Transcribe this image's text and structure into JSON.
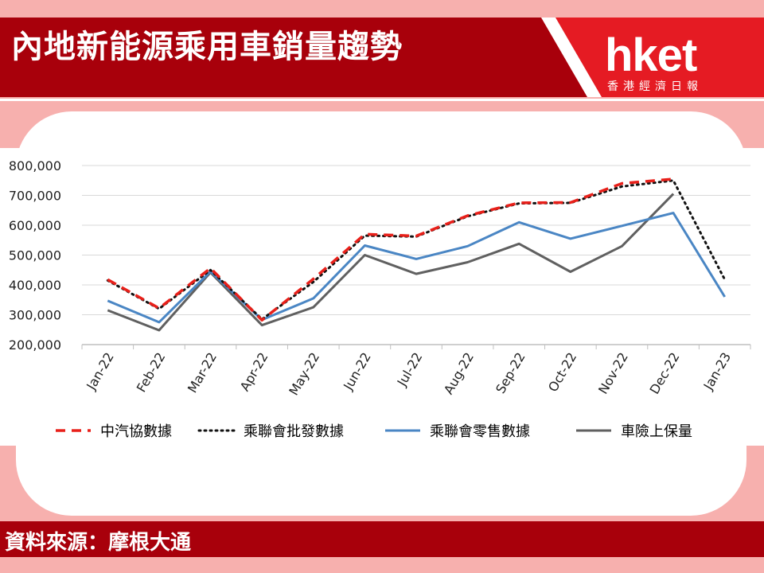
{
  "header": {
    "title": "內地新能源乘用車銷量趨勢",
    "logo_text": "hket",
    "logo_subtitle": "香港經濟日報",
    "brand_color": "#a8000b",
    "background_color": "#f7b0ae"
  },
  "footer": {
    "source_text": "資料來源：摩根大通"
  },
  "chart_data": {
    "type": "line",
    "categories": [
      "Jan-22",
      "Feb-22",
      "Mar-22",
      "Apr-22",
      "May-22",
      "Jun-22",
      "Jul-22",
      "Aug-22",
      "Sep-22",
      "Oct-22",
      "Nov-22",
      "Dec-22",
      "Jan-23"
    ],
    "ylim": [
      200000,
      800000
    ],
    "yticks": [
      200000,
      300000,
      400000,
      500000,
      600000,
      700000,
      800000
    ],
    "ytick_labels": [
      "200,000",
      "300,000",
      "400,000",
      "500,000",
      "600,000",
      "700,000",
      "800,000"
    ],
    "title": "",
    "xlabel": "",
    "ylabel": "",
    "grid": true,
    "legend_position": "bottom",
    "series": [
      {
        "name": "中汽協數據",
        "color": "#e8201a",
        "style": "dashed",
        "values": [
          418000,
          322000,
          456000,
          282000,
          420000,
          570000,
          564000,
          632000,
          675000,
          676000,
          740000,
          755000,
          null
        ]
      },
      {
        "name": "乘聯會批發數據",
        "color": "#111111",
        "style": "dotted",
        "values": [
          415000,
          320000,
          450000,
          285000,
          410000,
          565000,
          562000,
          630000,
          673000,
          675000,
          730000,
          750000,
          418000
        ]
      },
      {
        "name": "乘聯會零售數據",
        "color": "#4a86c4",
        "style": "solid",
        "values": [
          347000,
          275000,
          445000,
          283000,
          355000,
          532000,
          487000,
          530000,
          610000,
          555000,
          598000,
          641000,
          360000
        ]
      },
      {
        "name": "車險上保量",
        "color": "#606060",
        "style": "solid",
        "values": [
          315000,
          248000,
          442000,
          265000,
          325000,
          500000,
          437000,
          476000,
          538000,
          444000,
          530000,
          705000,
          null
        ]
      }
    ]
  }
}
